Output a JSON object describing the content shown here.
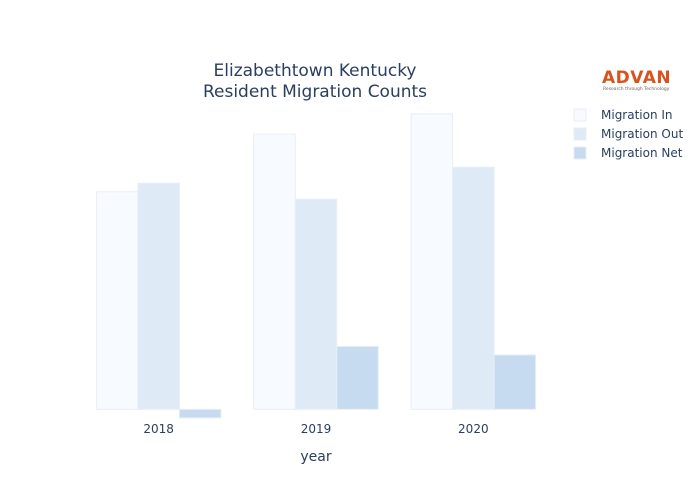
{
  "chart_data": {
    "type": "bar",
    "title_lines": [
      "Elizabethtown Kentucky",
      "Resident Migration Counts"
    ],
    "xlabel": "year",
    "ylabel": "",
    "categories": [
      "2018",
      "2019",
      "2020"
    ],
    "series": [
      {
        "name": "Migration In",
        "values": [
          204,
          258,
          277
        ],
        "color": "#f7fbff"
      },
      {
        "name": "Migration Out",
        "values": [
          212,
          197,
          227
        ],
        "color": "#deebf7"
      },
      {
        "name": "Migration Net",
        "values": [
          -8,
          59,
          51
        ],
        "color": "#c6dbef"
      }
    ],
    "ylim": [
      -10,
      290
    ],
    "grid": false,
    "legend_position": "top-right"
  },
  "logo": {
    "name": "ADVAN",
    "tagline": "Research through Technology",
    "color": "#d9531e"
  }
}
